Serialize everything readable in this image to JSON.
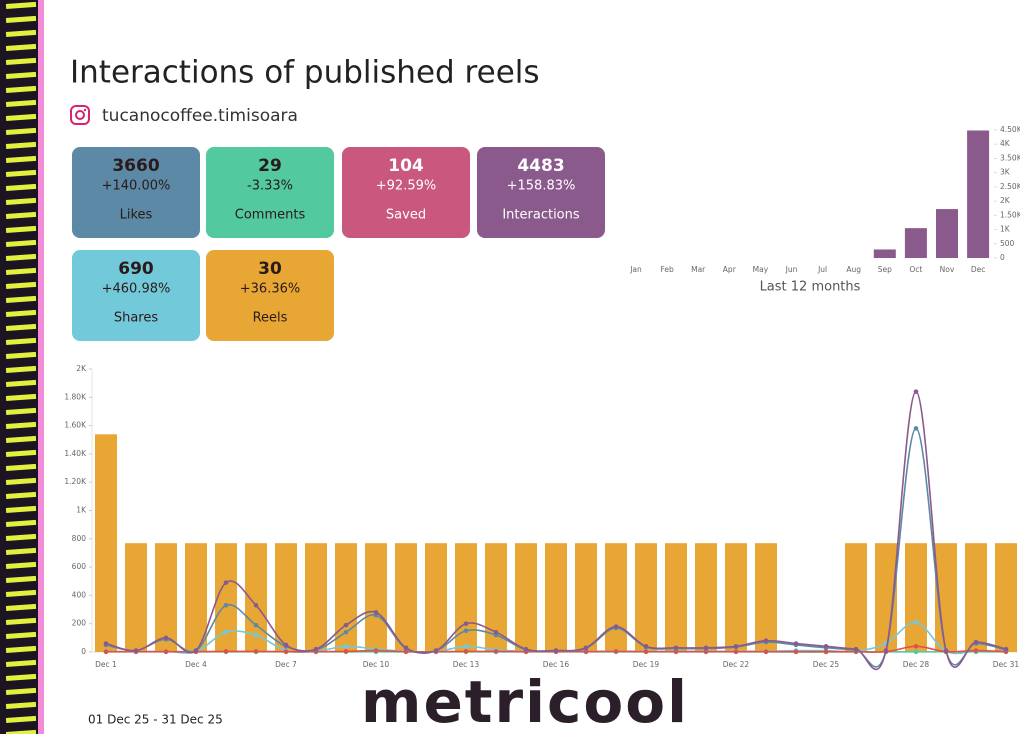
{
  "title": "Interactions of published reels",
  "account": "tucanocoffee.timisoara",
  "kpis": [
    {
      "value": 3660,
      "change": "+140.00%",
      "label": "Likes",
      "color": "#5b89a6",
      "text_color": "#2a1a1a"
    },
    {
      "value": 29,
      "change": "-3.33%",
      "label": "Comments",
      "color": "#52c99e",
      "text_color": "#2a1a1a"
    },
    {
      "value": 104,
      "change": "+92.59%",
      "label": "Saved",
      "color": "#c9577e",
      "text_color": "#ffffff"
    },
    {
      "value": 4483,
      "change": "+158.83%",
      "label": "Interactions",
      "color": "#8a5a8c",
      "text_color": "#ffffff"
    },
    {
      "value": 690,
      "change": "+460.98%",
      "label": "Shares",
      "color": "#72c9d9",
      "text_color": "#2a1a1a"
    },
    {
      "value": 30,
      "change": "+36.36%",
      "label": "Reels",
      "color": "#e8a735",
      "text_color": "#2a1a1a"
    }
  ],
  "date_range": "01 Dec 25  - 31 Dec 25",
  "logo": "metricool",
  "chart_data": [
    {
      "type": "bar",
      "xlabel": "Last 12 months",
      "color": "#8a5a8c",
      "categories": [
        "Jan",
        "Feb",
        "Mar",
        "Apr",
        "May",
        "Jun",
        "Jul",
        "Aug",
        "Sep",
        "Oct",
        "Nov",
        "Dec"
      ],
      "values": [
        0,
        0,
        0,
        0,
        0,
        0,
        0,
        0,
        300,
        1050,
        1720,
        4483
      ],
      "ylim": [
        0,
        4500
      ],
      "yticks": [
        0,
        500,
        {
          "value": 1000,
          "label": "1K"
        },
        {
          "value": 1500,
          "label": "1.50K"
        },
        {
          "value": 2000,
          "label": "2K"
        },
        {
          "value": 2500,
          "label": "2.50K"
        },
        {
          "value": 3000,
          "label": "3K"
        },
        {
          "value": 3500,
          "label": "3.50K"
        },
        {
          "value": 4000,
          "label": "4K"
        },
        {
          "value": 4500,
          "label": "4.50K"
        }
      ]
    },
    {
      "type": "combo",
      "categories": [
        "Dec 1",
        null,
        null,
        "Dec 4",
        null,
        null,
        "Dec 7",
        null,
        null,
        "Dec 10",
        null,
        null,
        "Dec 13",
        null,
        null,
        "Dec 16",
        null,
        null,
        "Dec 19",
        null,
        null,
        "Dec 22",
        null,
        null,
        "Dec 25",
        null,
        null,
        "Dec 28",
        null,
        null,
        "Dec 31"
      ],
      "ylim": [
        0,
        2000
      ],
      "yticks": [
        0,
        200,
        400,
        600,
        800,
        {
          "value": 1000,
          "label": "1K"
        },
        {
          "value": 1200,
          "label": "1.20K"
        },
        {
          "value": 1400,
          "label": "1.40K"
        },
        {
          "value": 1600,
          "label": "1.60K"
        },
        {
          "value": 1800,
          "label": "1.80K"
        },
        {
          "value": 2000,
          "label": "2K"
        }
      ],
      "y2lim": [
        0,
        2.6
      ],
      "series": [
        {
          "type": "bar",
          "axis": "y2",
          "color": "#e8a735",
          "values": [
            2,
            1,
            1,
            1,
            1,
            1,
            1,
            1,
            1,
            1,
            1,
            1,
            1,
            1,
            1,
            1,
            1,
            1,
            1,
            1,
            1,
            1,
            1,
            0,
            0,
            1,
            1,
            1,
            1,
            1,
            1
          ]
        },
        {
          "type": "line",
          "color": "#72c9d9",
          "values": [
            5,
            2,
            5,
            2,
            140,
            120,
            10,
            5,
            40,
            20,
            5,
            2,
            40,
            15,
            5,
            2,
            5,
            5,
            5,
            5,
            5,
            5,
            5,
            10,
            10,
            5,
            60,
            210,
            5,
            5,
            5
          ]
        },
        {
          "type": "line",
          "color": "#52c99e",
          "values": [
            1,
            1,
            1,
            1,
            1,
            1,
            1,
            1,
            1,
            1,
            1,
            1,
            1,
            1,
            1,
            1,
            1,
            1,
            1,
            1,
            1,
            1,
            1,
            0,
            0,
            1,
            1,
            1,
            1,
            1,
            1
          ]
        },
        {
          "type": "line",
          "color": "#e0504a",
          "values": [
            2,
            2,
            2,
            2,
            4,
            4,
            2,
            2,
            4,
            10,
            2,
            2,
            4,
            4,
            2,
            2,
            2,
            4,
            2,
            2,
            2,
            2,
            2,
            2,
            2,
            2,
            2,
            40,
            2,
            10,
            2
          ]
        },
        {
          "type": "line",
          "color": "#5b89a6",
          "values": [
            50,
            10,
            90,
            10,
            330,
            190,
            40,
            15,
            140,
            260,
            25,
            10,
            150,
            120,
            15,
            10,
            25,
            170,
            35,
            25,
            25,
            35,
            70,
            50,
            30,
            15,
            10,
            1580,
            10,
            60,
            15
          ]
        },
        {
          "type": "line",
          "color": "#8a5a8c",
          "values": [
            60,
            10,
            100,
            10,
            490,
            330,
            50,
            20,
            190,
            280,
            30,
            10,
            200,
            140,
            20,
            10,
            30,
            180,
            40,
            30,
            30,
            40,
            80,
            60,
            40,
            20,
            10,
            1840,
            10,
            70,
            20
          ]
        }
      ]
    }
  ]
}
